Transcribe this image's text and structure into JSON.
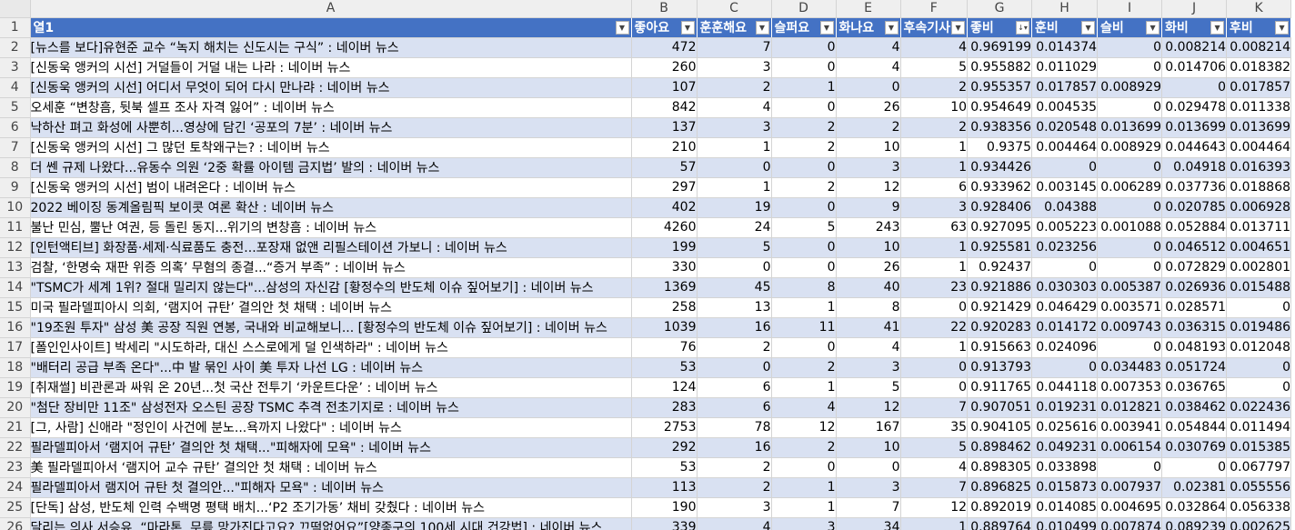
{
  "column_letters": [
    "A",
    "B",
    "C",
    "D",
    "E",
    "F",
    "G",
    "H",
    "I",
    "J",
    "K"
  ],
  "headers": [
    "열1",
    "좋아요",
    "훈훈해요",
    "슬퍼요",
    "화나요",
    "후속기사",
    "좋비",
    "훈비",
    "슬비",
    "화비",
    "후비"
  ],
  "icons": {
    "filter": "filter-dropdown-icon",
    "sorted": "sort-descending-filter-icon"
  },
  "rows": [
    {
      "n": "2",
      "v": [
        "[뉴스를 보다]유현준 교수 “녹지 해치는 신도시는 구식” : 네이버 뉴스",
        "472",
        "7",
        "0",
        "4",
        "4",
        "0.969199",
        "0.014374",
        "0",
        "0.008214",
        "0.008214"
      ]
    },
    {
      "n": "3",
      "v": [
        "[신동욱 앵커의 시선] 거덜들이 거덜 내는 나라 : 네이버 뉴스",
        "260",
        "3",
        "0",
        "4",
        "5",
        "0.955882",
        "0.011029",
        "0",
        "0.014706",
        "0.018382"
      ]
    },
    {
      "n": "4",
      "v": [
        "[신동욱 앵커의 시선] 어디서 무엇이 되어 다시 만나랴 : 네이버 뉴스",
        "107",
        "2",
        "1",
        "0",
        "2",
        "0.955357",
        "0.017857",
        "0.008929",
        "0",
        "0.017857"
      ]
    },
    {
      "n": "5",
      "v": [
        "오세훈 “변창흠, 뒷북 셀프 조사 자격 잃어” : 네이버 뉴스",
        "842",
        "4",
        "0",
        "26",
        "10",
        "0.954649",
        "0.004535",
        "0",
        "0.029478",
        "0.011338"
      ]
    },
    {
      "n": "6",
      "v": [
        "낙하산 펴고 화성에 사뿐히...영상에 담긴 ‘공포의 7분’ : 네이버 뉴스",
        "137",
        "3",
        "2",
        "2",
        "2",
        "0.938356",
        "0.020548",
        "0.013699",
        "0.013699",
        "0.013699"
      ]
    },
    {
      "n": "7",
      "v": [
        "[신동욱 앵커의 시선] 그 많던 토착왜구는? : 네이버 뉴스",
        "210",
        "1",
        "2",
        "10",
        "1",
        "0.9375",
        "0.004464",
        "0.008929",
        "0.044643",
        "0.004464"
      ]
    },
    {
      "n": "8",
      "v": [
        "더 쎈 규제 나왔다...유동수 의원 ‘2중 확률 아이템 금지법’ 발의 : 네이버 뉴스",
        "57",
        "0",
        "0",
        "3",
        "1",
        "0.934426",
        "0",
        "0",
        "0.04918",
        "0.016393"
      ]
    },
    {
      "n": "9",
      "v": [
        "[신동욱 앵커의 시선] 범이 내려온다 : 네이버 뉴스",
        "297",
        "1",
        "2",
        "12",
        "6",
        "0.933962",
        "0.003145",
        "0.006289",
        "0.037736",
        "0.018868"
      ]
    },
    {
      "n": "10",
      "v": [
        "2022 베이징 동계올림픽 보이콧 여론 확산 : 네이버 뉴스",
        "402",
        "19",
        "0",
        "9",
        "3",
        "0.928406",
        "0.04388",
        "0",
        "0.020785",
        "0.006928"
      ]
    },
    {
      "n": "11",
      "v": [
        "불난 민심, 뿔난 여권, 등 돌린 동지...위기의 변창흠 : 네이버 뉴스",
        "4260",
        "24",
        "5",
        "243",
        "63",
        "0.927095",
        "0.005223",
        "0.001088",
        "0.052884",
        "0.013711"
      ]
    },
    {
      "n": "12",
      "v": [
        "[인턴액티브] 화장품·세제·식료품도 충전...포장재 없앤 리필스테이션 가보니 : 네이버 뉴스",
        "199",
        "5",
        "0",
        "10",
        "1",
        "0.925581",
        "0.023256",
        "0",
        "0.046512",
        "0.004651"
      ]
    },
    {
      "n": "13",
      "v": [
        "검찰, ‘한명숙 재판 위증 의혹’ 무혐의 종결...“증거 부족” : 네이버 뉴스",
        "330",
        "0",
        "0",
        "26",
        "1",
        "0.92437",
        "0",
        "0",
        "0.072829",
        "0.002801"
      ]
    },
    {
      "n": "14",
      "v": [
        "\"TSMC가 세계 1위? 절대 밀리지 않는다\"...삼성의 자신감 [황정수의 반도체 이슈 짚어보기] : 네이버 뉴스",
        "1369",
        "45",
        "8",
        "40",
        "23",
        "0.921886",
        "0.030303",
        "0.005387",
        "0.026936",
        "0.015488"
      ]
    },
    {
      "n": "15",
      "v": [
        "미국 필라델피아시 의회, ‘램지어 규탄’ 결의안 첫 채택 : 네이버 뉴스",
        "258",
        "13",
        "1",
        "8",
        "0",
        "0.921429",
        "0.046429",
        "0.003571",
        "0.028571",
        "0"
      ]
    },
    {
      "n": "16",
      "v": [
        "\"19조원 투자\" 삼성 美 공장 직원 연봉, 국내와 비교해보니... [황정수의 반도체 이슈 짚어보기] : 네이버 뉴스",
        "1039",
        "16",
        "11",
        "41",
        "22",
        "0.920283",
        "0.014172",
        "0.009743",
        "0.036315",
        "0.019486"
      ]
    },
    {
      "n": "17",
      "v": [
        "[폴인인사이트] 박세리 \"시도하라, 대신 스스로에게 덜 인색하라\" : 네이버 뉴스",
        "76",
        "2",
        "0",
        "4",
        "1",
        "0.915663",
        "0.024096",
        "0",
        "0.048193",
        "0.012048"
      ]
    },
    {
      "n": "18",
      "v": [
        "\"배터리 공급 부족 온다\"...中 발 묶인 사이 美 투자 나선 LG : 네이버 뉴스",
        "53",
        "0",
        "2",
        "3",
        "0",
        "0.913793",
        "0",
        "0.034483",
        "0.051724",
        "0"
      ]
    },
    {
      "n": "19",
      "v": [
        "[취재썰] 비관론과 싸워 온 20년...첫 국산 전투기 ‘카운트다운’ : 네이버 뉴스",
        "124",
        "6",
        "1",
        "5",
        "0",
        "0.911765",
        "0.044118",
        "0.007353",
        "0.036765",
        "0"
      ]
    },
    {
      "n": "20",
      "v": [
        "\"첨단 장비만 11조\" 삼성전자 오스틴 공장 TSMC 추격 전초기지로 : 네이버 뉴스",
        "283",
        "6",
        "4",
        "12",
        "7",
        "0.907051",
        "0.019231",
        "0.012821",
        "0.038462",
        "0.022436"
      ]
    },
    {
      "n": "21",
      "v": [
        "[그, 사람] 신애라 \"정인이 사건에 분노...욕까지 나왔다\" : 네이버 뉴스",
        "2753",
        "78",
        "12",
        "167",
        "35",
        "0.904105",
        "0.025616",
        "0.003941",
        "0.054844",
        "0.011494"
      ]
    },
    {
      "n": "22",
      "v": [
        "필라델피아서 ‘램지어 규탄’ 결의안 첫 채택...\"피해자에 모욕\" : 네이버 뉴스",
        "292",
        "16",
        "2",
        "10",
        "5",
        "0.898462",
        "0.049231",
        "0.006154",
        "0.030769",
        "0.015385"
      ]
    },
    {
      "n": "23",
      "v": [
        "美 필라델피아서 ‘램지어 교수 규탄’ 결의안 첫 채택 : 네이버 뉴스",
        "53",
        "2",
        "0",
        "0",
        "4",
        "0.898305",
        "0.033898",
        "0",
        "0",
        "0.067797"
      ]
    },
    {
      "n": "24",
      "v": [
        "필라델피아서 램지어 규탄 첫 결의안...\"피해자 모욕\" : 네이버 뉴스",
        "113",
        "2",
        "1",
        "3",
        "7",
        "0.896825",
        "0.015873",
        "0.007937",
        "0.02381",
        "0.055556"
      ]
    },
    {
      "n": "25",
      "v": [
        "[단독] 삼성, 반도체 인력 수백명 평택 배치...‘P2 조기가동’ 채비 갖췄다 : 네이버 뉴스",
        "190",
        "3",
        "1",
        "7",
        "12",
        "0.892019",
        "0.014085",
        "0.004695",
        "0.032864",
        "0.056338"
      ]
    },
    {
      "n": "26",
      "v": [
        "달리는 의사 서승유, “마라톤, 무릎 망가진다고요? 끄떡없어요”[양종구의 100세 시대 건강법] : 네이버 뉴스",
        "339",
        "4",
        "3",
        "34",
        "1",
        "0.889764",
        "0.010499",
        "0.007874",
        "0.089239",
        "0.002625"
      ]
    }
  ]
}
